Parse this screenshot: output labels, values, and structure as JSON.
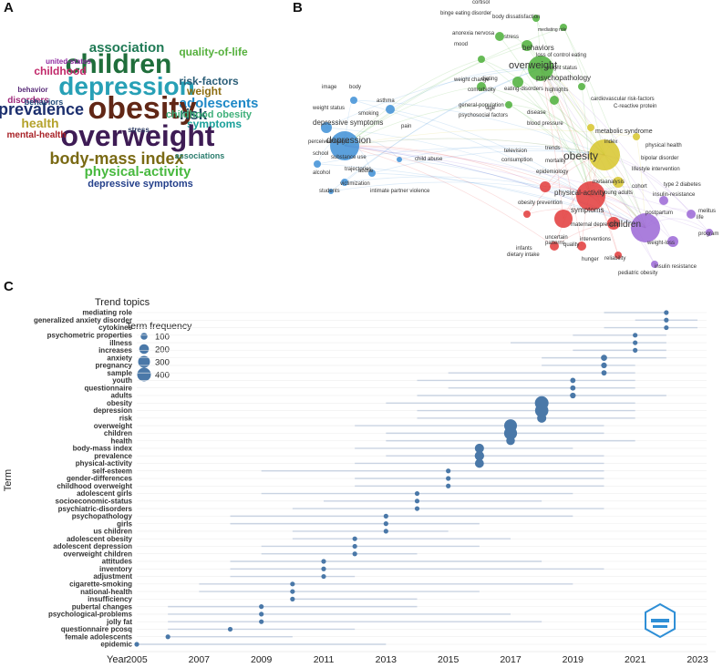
{
  "panels": {
    "a": "A",
    "b": "B",
    "c": "C"
  },
  "wordcloud": {
    "words": [
      {
        "text": "association",
        "color": "#1f7a55",
        "size": 15
      },
      {
        "text": "children",
        "color": "#1f6e3b",
        "size": 30
      },
      {
        "text": "childhood",
        "color": "#c1286a",
        "size": 12
      },
      {
        "text": "united-states",
        "color": "#8f2aa0",
        "size": 8
      },
      {
        "text": "quality-of-life",
        "color": "#55b03c",
        "size": 12
      },
      {
        "text": "depression",
        "color": "#27a0b6",
        "size": 28
      },
      {
        "text": "risk-factors",
        "color": "#2a5d77",
        "size": 12
      },
      {
        "text": "weight",
        "color": "#8d6d12",
        "size": 12
      },
      {
        "text": "adolescents",
        "color": "#1d88c7",
        "size": 15
      },
      {
        "text": "prevalence",
        "color": "#1c2f6e",
        "size": 18
      },
      {
        "text": "obesity",
        "color": "#612716",
        "size": 34
      },
      {
        "text": "risk",
        "color": "#1d4a5e",
        "size": 17
      },
      {
        "text": "childhood obesity",
        "color": "#3fb07a",
        "size": 11
      },
      {
        "text": "health",
        "color": "#b4a22b",
        "size": 14
      },
      {
        "text": "symptoms",
        "color": "#1aa09a",
        "size": 12
      },
      {
        "text": "overweight",
        "color": "#3e1c55",
        "size": 32
      },
      {
        "text": "mental-health",
        "color": "#a82227",
        "size": 10
      },
      {
        "text": "body-mass index",
        "color": "#7a6a14",
        "size": 18
      },
      {
        "text": "associations",
        "color": "#2b7d6e",
        "size": 9
      },
      {
        "text": "physical-activity",
        "color": "#48b93f",
        "size": 15
      },
      {
        "text": "depressive symptoms",
        "color": "#233f8a",
        "size": 11
      },
      {
        "text": "disorders",
        "color": "#9e2a7a",
        "size": 10
      },
      {
        "text": "behavior",
        "color": "#5a2d7a",
        "size": 8
      },
      {
        "text": "behaviors",
        "color": "#234c7b",
        "size": 9
      },
      {
        "text": "stress",
        "color": "#2c3b63",
        "size": 8
      }
    ]
  },
  "network": {
    "clusters": [
      {
        "name": "blue",
        "color": "#3e8fd6"
      },
      {
        "name": "green",
        "color": "#4caf3a"
      },
      {
        "name": "yellow",
        "color": "#d7c62b"
      },
      {
        "name": "red",
        "color": "#e23a3a"
      },
      {
        "name": "purple",
        "color": "#9b67d6"
      }
    ],
    "labels": [
      "cortisol",
      "binge eating disorder",
      "body dissatisfaction",
      "mediating role",
      "anorexia nervosa",
      "stress",
      "mood",
      "behaviors",
      "loss of control eating",
      "overweight",
      "weight status",
      "psychopathology",
      "dieting",
      "weight change",
      "comorbidity",
      "eating-disorders",
      "highlights",
      "cardiovascular risk-factors",
      "general-population",
      "C-reactive protein",
      "age",
      "psychosocial factors",
      "disease",
      "blood pressure",
      "image",
      "body",
      "asthma",
      "smoking",
      "weight status",
      "depressive symptoms",
      "pain",
      "perceived weight",
      "depression",
      "child abuse",
      "school",
      "substance use",
      "alcohol",
      "trajectories",
      "abuse",
      "victimization",
      "students",
      "intimate partner violence",
      "metabolic syndrome",
      "trends",
      "index",
      "physical health",
      "mortality",
      "obesity",
      "bipolar disorder",
      "lifestyle intervention",
      "television",
      "epidemiology",
      "consumption",
      "cohort",
      "type 2 diabetes",
      "metaanalysis",
      "young adults",
      "insulin-resistance",
      "physical-activity",
      "obesity prevention",
      "symptoms",
      "postpartum",
      "maternal depression",
      "children",
      "melitus",
      "life",
      "patterns",
      "dietary intake",
      "uncertain",
      "program",
      "infants",
      "interventions",
      "weight-loss",
      "quality",
      "hunger",
      "reliability",
      "insulin resistance",
      "pediatric obesity"
    ]
  },
  "chart_data": {
    "type": "scatter",
    "title": "Trend topics",
    "xlabel": "Year",
    "ylabel": "Term",
    "xlim": [
      2005,
      2023
    ],
    "xticks": [
      2005,
      2007,
      2009,
      2011,
      2013,
      2015,
      2017,
      2019,
      2021,
      2023
    ],
    "size_legend": {
      "title": "Term frequency",
      "values": [
        100,
        200,
        300,
        400
      ]
    },
    "color": "#4a78a8",
    "line_color": "#c9d3e2",
    "terms": [
      {
        "term": "mediating role",
        "median": 2022,
        "q1": 2020,
        "q3": 2022,
        "freq": 20
      },
      {
        "term": "generalized anxiety disorder",
        "median": 2022,
        "q1": 2021,
        "q3": 2023,
        "freq": 30
      },
      {
        "term": "cytokines",
        "median": 2022,
        "q1": 2020,
        "q3": 2023,
        "freq": 25
      },
      {
        "term": "psychometric properties",
        "median": 2021,
        "q1": 2019,
        "q3": 2022,
        "freq": 30
      },
      {
        "term": "illness",
        "median": 2021,
        "q1": 2017,
        "q3": 2022,
        "freq": 25
      },
      {
        "term": "increases",
        "median": 2021,
        "q1": 2019,
        "q3": 2022,
        "freq": 25
      },
      {
        "term": "anxiety",
        "median": 2020,
        "q1": 2018,
        "q3": 2022,
        "freq": 80
      },
      {
        "term": "pregnancy",
        "median": 2020,
        "q1": 2018,
        "q3": 2021,
        "freq": 70
      },
      {
        "term": "sample",
        "median": 2020,
        "q1": 2015,
        "q3": 2021,
        "freq": 60
      },
      {
        "term": "youth",
        "median": 2019,
        "q1": 2014,
        "q3": 2021,
        "freq": 60
      },
      {
        "term": "questionnaire",
        "median": 2019,
        "q1": 2015,
        "q3": 2021,
        "freq": 60
      },
      {
        "term": "adults",
        "median": 2019,
        "q1": 2014,
        "q3": 2022,
        "freq": 70
      },
      {
        "term": "obesity",
        "median": 2018,
        "q1": 2013,
        "q3": 2021,
        "freq": 400
      },
      {
        "term": "depression",
        "median": 2018,
        "q1": 2014,
        "q3": 2021,
        "freq": 380
      },
      {
        "term": "risk",
        "median": 2018,
        "q1": 2014,
        "q3": 2021,
        "freq": 180
      },
      {
        "term": "overweight",
        "median": 2017,
        "q1": 2012,
        "q3": 2020,
        "freq": 350
      },
      {
        "term": "children",
        "median": 2017,
        "q1": 2013,
        "q3": 2020,
        "freq": 360
      },
      {
        "term": "health",
        "median": 2017,
        "q1": 2013,
        "q3": 2021,
        "freq": 160
      },
      {
        "term": "body-mass index",
        "median": 2016,
        "q1": 2012,
        "q3": 2019,
        "freq": 180
      },
      {
        "term": "prevalence",
        "median": 2016,
        "q1": 2013,
        "q3": 2020,
        "freq": 190
      },
      {
        "term": "physical-activity",
        "median": 2016,
        "q1": 2012,
        "q3": 2020,
        "freq": 170
      },
      {
        "term": "self-esteem",
        "median": 2015,
        "q1": 2009,
        "q3": 2020,
        "freq": 45
      },
      {
        "term": "gender-differences",
        "median": 2015,
        "q1": 2012,
        "q3": 2020,
        "freq": 45
      },
      {
        "term": "childhood overweight",
        "median": 2015,
        "q1": 2012,
        "q3": 2020,
        "freq": 40
      },
      {
        "term": "adolescent girls",
        "median": 2014,
        "q1": 2009,
        "q3": 2019,
        "freq": 35
      },
      {
        "term": "socioeconomic-status",
        "median": 2014,
        "q1": 2011,
        "q3": 2018,
        "freq": 35
      },
      {
        "term": "psychiatric-disorders",
        "median": 2014,
        "q1": 2010,
        "q3": 2020,
        "freq": 35
      },
      {
        "term": "psychopathology",
        "median": 2013,
        "q1": 2008,
        "q3": 2019,
        "freq": 35
      },
      {
        "term": "girls",
        "median": 2013,
        "q1": 2008,
        "q3": 2016,
        "freq": 30
      },
      {
        "term": "us children",
        "median": 2013,
        "q1": 2010,
        "q3": 2015,
        "freq": 30
      },
      {
        "term": "adolescent obesity",
        "median": 2012,
        "q1": 2010,
        "q3": 2017,
        "freq": 30
      },
      {
        "term": "adolescent depression",
        "median": 2012,
        "q1": 2009,
        "q3": 2016,
        "freq": 30
      },
      {
        "term": "overweight children",
        "median": 2012,
        "q1": 2009,
        "q3": 2014,
        "freq": 30
      },
      {
        "term": "attitudes",
        "median": 2011,
        "q1": 2008,
        "q3": 2018,
        "freq": 25
      },
      {
        "term": "inventory",
        "median": 2011,
        "q1": 2008,
        "q3": 2020,
        "freq": 25
      },
      {
        "term": "adjustment",
        "median": 2011,
        "q1": 2008,
        "q3": 2012,
        "freq": 25
      },
      {
        "term": "cigarette-smoking",
        "median": 2010,
        "q1": 2007,
        "q3": 2019,
        "freq": 25
      },
      {
        "term": "national-health",
        "median": 2010,
        "q1": 2007,
        "q3": 2016,
        "freq": 25
      },
      {
        "term": "insufficiency",
        "median": 2010,
        "q1": 2010,
        "q3": 2014,
        "freq": 20
      },
      {
        "term": "pubertal changes",
        "median": 2009,
        "q1": 2006,
        "q3": 2014,
        "freq": 20
      },
      {
        "term": "psychological-problems",
        "median": 2009,
        "q1": 2006,
        "q3": 2017,
        "freq": 20
      },
      {
        "term": "jolly fat",
        "median": 2009,
        "q1": 2006,
        "q3": 2018,
        "freq": 20
      },
      {
        "term": "questionnaire pcosq",
        "median": 2008,
        "q1": 2006,
        "q3": 2012,
        "freq": 18
      },
      {
        "term": "female adolescents",
        "median": 2006,
        "q1": 2006,
        "q3": 2010,
        "freq": 18
      },
      {
        "term": "epidemic",
        "median": 2005,
        "q1": 2005,
        "q3": 2013,
        "freq": 18
      }
    ]
  }
}
